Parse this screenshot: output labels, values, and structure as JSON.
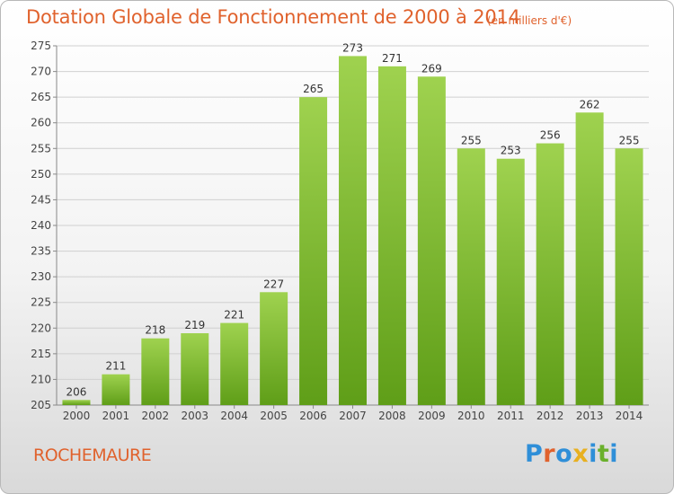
{
  "header": {
    "title": "Dotation Globale de Fonctionnement de 2000 à 2014",
    "subtitle": "(en milliers d'€)"
  },
  "footer": {
    "commune": "ROCHEMAURE",
    "logo_text": "Proxiti"
  },
  "colors": {
    "accent": "#e0622d",
    "bar_top": "#9fd24f",
    "bar_bottom": "#5f9e18",
    "grid": "#d0d0d0"
  },
  "chart_data": {
    "type": "bar",
    "categories": [
      "2000",
      "2001",
      "2002",
      "2003",
      "2004",
      "2005",
      "2006",
      "2007",
      "2008",
      "2009",
      "2010",
      "2011",
      "2012",
      "2013",
      "2014"
    ],
    "values": [
      206,
      211,
      218,
      219,
      221,
      227,
      265,
      273,
      271,
      269,
      255,
      253,
      256,
      262,
      255
    ],
    "ylim": [
      205,
      275
    ],
    "yticks": [
      205,
      210,
      215,
      220,
      225,
      230,
      235,
      240,
      245,
      250,
      255,
      260,
      265,
      270,
      275
    ],
    "grid": true,
    "data_labels": true,
    "xlabel": "",
    "ylabel": ""
  }
}
